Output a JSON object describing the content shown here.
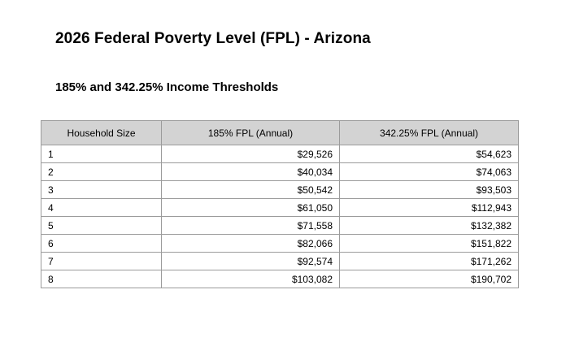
{
  "page": {
    "title": "2026 Federal Poverty Level (FPL) - Arizona",
    "subtitle": "185% and 342.25% Income Thresholds"
  },
  "table": {
    "columns": [
      "Household Size",
      "185% FPL (Annual)",
      "342.25% FPL (Annual)"
    ],
    "rows": [
      [
        "1",
        "$29,526",
        "$54,623"
      ],
      [
        "2",
        "$40,034",
        "$74,063"
      ],
      [
        "3",
        "$50,542",
        "$93,503"
      ],
      [
        "4",
        "$61,050",
        "$112,943"
      ],
      [
        "5",
        "$71,558",
        "$132,382"
      ],
      [
        "6",
        "$82,066",
        "$151,822"
      ],
      [
        "7",
        "$92,574",
        "$171,262"
      ],
      [
        "8",
        "$103,082",
        "$190,702"
      ]
    ]
  },
  "colors": {
    "page_background": "#ffffff",
    "header_background": "#d3d3d3",
    "table_border": "#9b9b9b",
    "text": "#000000"
  }
}
